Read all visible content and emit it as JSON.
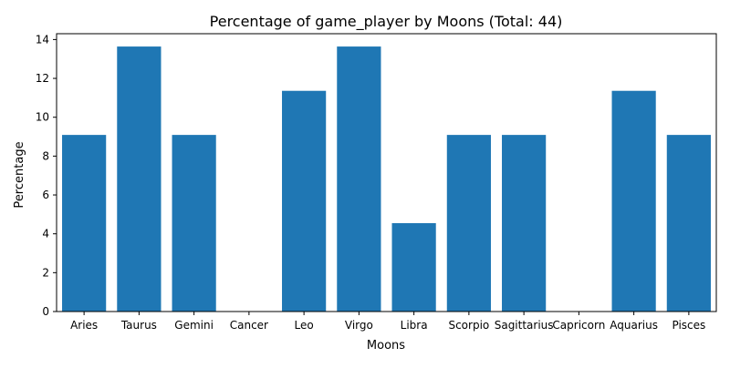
{
  "chart_data": {
    "type": "bar",
    "title": "Percentage of game_player by Moons (Total: 44)",
    "xlabel": "Moons",
    "ylabel": "Percentage",
    "categories": [
      "Aries",
      "Taurus",
      "Gemini",
      "Cancer",
      "Leo",
      "Virgo",
      "Libra",
      "Scorpio",
      "Sagittarius",
      "Capricorn",
      "Aquarius",
      "Pisces"
    ],
    "values": [
      9.09,
      13.64,
      9.09,
      0,
      11.36,
      13.64,
      4.55,
      9.09,
      9.09,
      0,
      11.36,
      9.09
    ],
    "ylim": [
      0,
      14.3
    ],
    "yticks": [
      0,
      2,
      4,
      6,
      8,
      10,
      12,
      14
    ],
    "bar_color": "#1f77b4",
    "grid": false,
    "legend": "none"
  }
}
